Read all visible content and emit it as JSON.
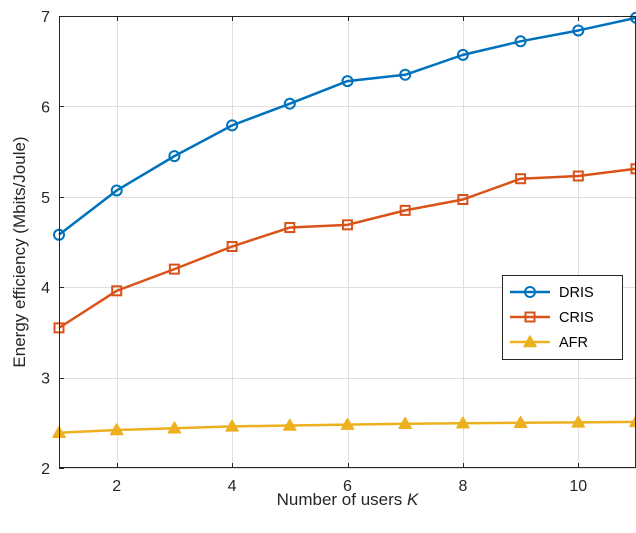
{
  "chart_data": {
    "type": "line",
    "x": [
      1,
      2,
      3,
      4,
      5,
      6,
      7,
      8,
      9,
      10,
      11
    ],
    "xlabel": "Number of users",
    "xlabel_symbol": "K",
    "ylabel": "Energy efficiency (Mbits/Joule)",
    "xlim": [
      1,
      11
    ],
    "ylim": [
      2,
      7
    ],
    "xticks": [
      2,
      4,
      6,
      8,
      10
    ],
    "yticks": [
      2,
      3,
      4,
      5,
      6,
      7
    ],
    "xtick_labels": [
      "2",
      "4",
      "6",
      "8",
      "10"
    ],
    "ytick_labels": [
      "2",
      "3",
      "4",
      "5",
      "6",
      "7"
    ],
    "grid": true,
    "legend_position": "center-right",
    "series": [
      {
        "name": "DRIS",
        "color": "#0072bd",
        "marker": "circle",
        "values": [
          4.58,
          5.07,
          5.45,
          5.79,
          6.03,
          6.28,
          6.35,
          6.57,
          6.72,
          6.84,
          6.98
        ]
      },
      {
        "name": "CRIS",
        "color": "#d95319",
        "marker": "square",
        "values": [
          3.55,
          3.96,
          4.2,
          4.45,
          4.66,
          4.69,
          4.85,
          4.97,
          5.2,
          5.23,
          5.31
        ]
      },
      {
        "name": "AFR",
        "color": "#edb120",
        "marker": "triangle",
        "values": [
          2.39,
          2.42,
          2.44,
          2.46,
          2.47,
          2.48,
          2.49,
          2.495,
          2.5,
          2.505,
          2.51
        ]
      }
    ]
  }
}
